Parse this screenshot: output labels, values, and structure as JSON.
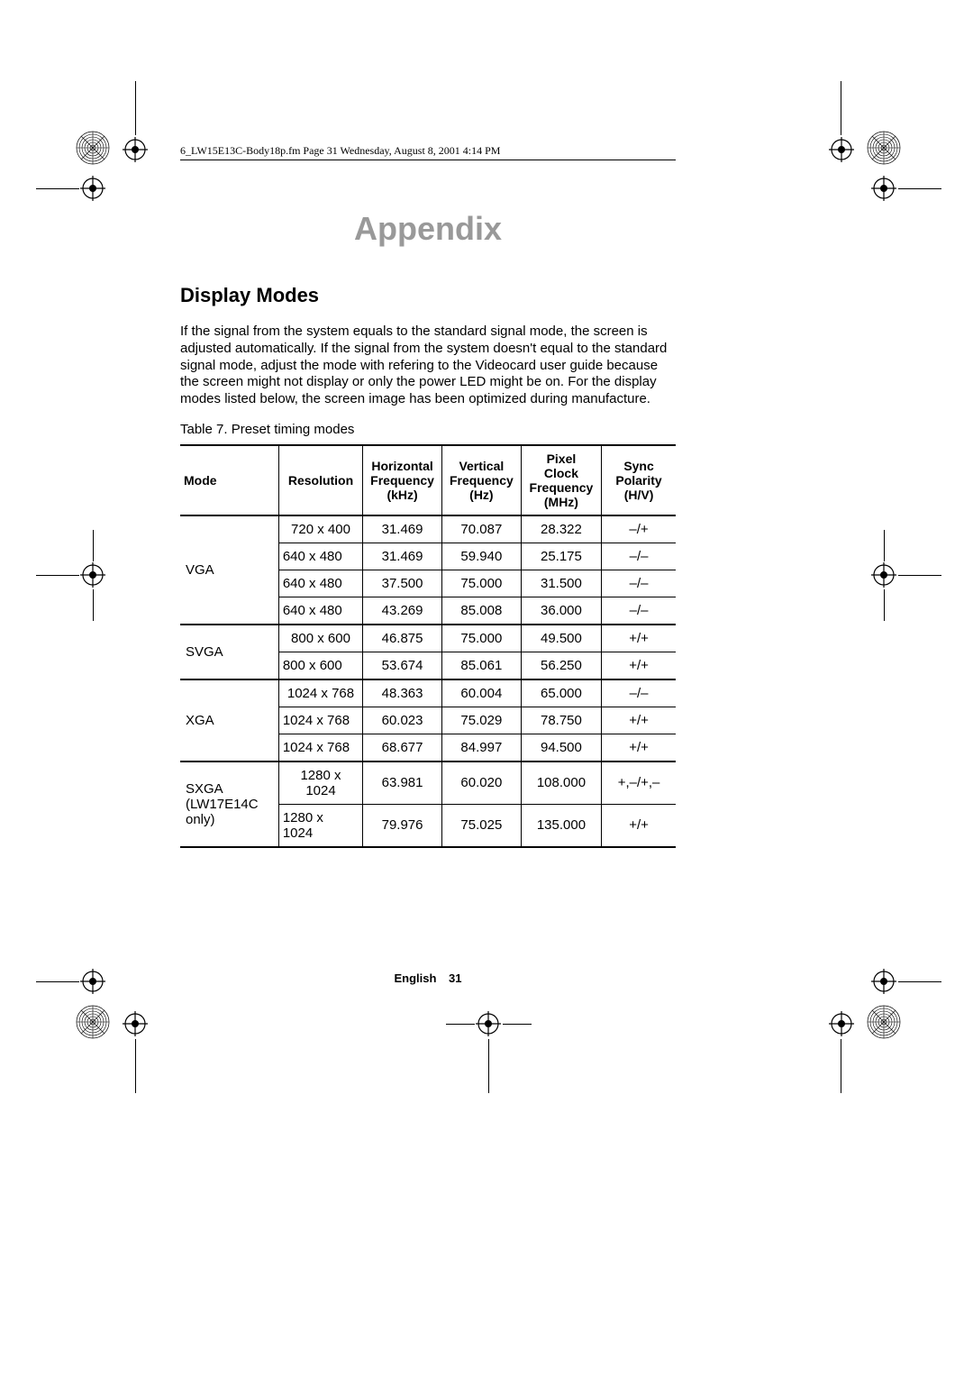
{
  "header_line": "6_LW15E13C-Body18p.fm  Page 31  Wednesday, August 8, 2001  4:14 PM",
  "section_title": "Appendix",
  "subsection_title": "Display Modes",
  "body_text": "If the signal from the system equals to the standard signal mode, the screen is adjusted automatically. If the signal from the system doesn't equal to the standard signal mode, adjust the mode with refering to the Videocard user guide because the screen might not display or only the power LED might be on. For the display modes listed below, the screen image has been optimized during manufacture.",
  "table_caption": "Table 7.  Preset timing modes",
  "table": {
    "columns": [
      "Mode",
      "Resolution",
      "Horizontal Frequency (kHz)",
      "Vertical Frequency (Hz)",
      "Pixel Clock Frequency (MHz)",
      "Sync Polarity (H/V)"
    ],
    "groups": [
      {
        "mode": "VGA",
        "rows": [
          [
            "720 x 400",
            "31.469",
            "70.087",
            "28.322",
            "–/+"
          ],
          [
            "640 x 480",
            "31.469",
            "59.940",
            "25.175",
            "–/–"
          ],
          [
            "640 x 480",
            "37.500",
            "75.000",
            "31.500",
            "–/–"
          ],
          [
            "640 x 480",
            "43.269",
            "85.008",
            "36.000",
            "–/–"
          ]
        ]
      },
      {
        "mode": "SVGA",
        "rows": [
          [
            "800 x 600",
            "46.875",
            "75.000",
            "49.500",
            "+/+"
          ],
          [
            "800 x 600",
            "53.674",
            "85.061",
            "56.250",
            "+/+"
          ]
        ]
      },
      {
        "mode": "XGA",
        "rows": [
          [
            "1024 x 768",
            "48.363",
            "60.004",
            "65.000",
            "–/–"
          ],
          [
            "1024 x 768",
            "60.023",
            "75.029",
            "78.750",
            "+/+"
          ],
          [
            "1024 x 768",
            "68.677",
            "84.997",
            "94.500",
            "+/+"
          ]
        ]
      },
      {
        "mode": "SXGA\n(LW17E14C only)",
        "rows": [
          [
            "1280 x 1024",
            "63.981",
            "60.020",
            "108.000",
            "+,–/+,–"
          ],
          [
            "1280 x 1024",
            "79.976",
            "75.025",
            "135.000",
            "+/+"
          ]
        ]
      }
    ]
  },
  "footer_label": "English",
  "footer_page": "31",
  "colors": {
    "title_gray": "#999999",
    "text": "#000000",
    "background": "#ffffff"
  }
}
